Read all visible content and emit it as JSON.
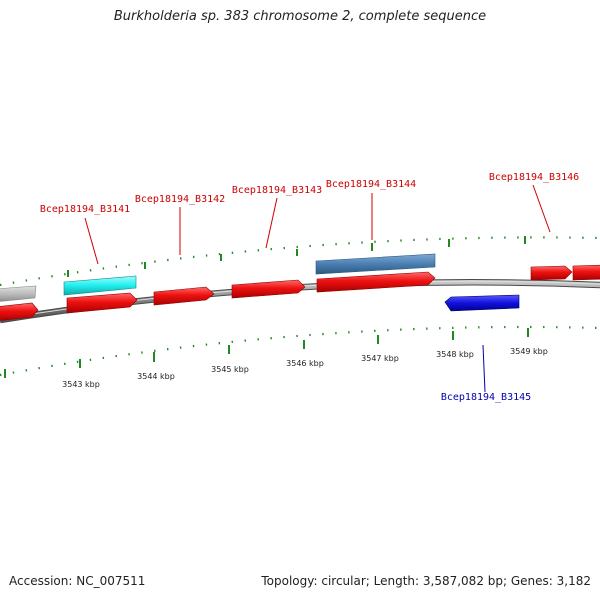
{
  "title": "Burkholderia sp. 383 chromosome 2, complete sequence",
  "footer": {
    "accession": "Accession: NC_007511",
    "summary": "Topology: circular; Length: 3,587,082 bp; Genes: 3,182"
  },
  "colors": {
    "gene_forward": "#ee1111",
    "gene_reverse": "#1111dd",
    "gene_cyan": "#22eeee",
    "gene_steelblue": "#4a7fb2",
    "gene_gray": "#bbbbbb",
    "backbone": "#888888",
    "ticks": "#228822",
    "label_red": "#cc0000",
    "label_blue": "#0000aa"
  },
  "genes": [
    {
      "id": "Bcep18194_B3141",
      "strand": "+",
      "track": "outer",
      "color": "cyan",
      "labeled": true
    },
    {
      "id": "Bcep18194_B3142",
      "strand": "+",
      "track": "inner",
      "color": "red",
      "labeled": true
    },
    {
      "id": "Bcep18194_B3143",
      "strand": "+",
      "track": "inner",
      "color": "red",
      "labeled": true
    },
    {
      "id": "Bcep18194_B3144",
      "strand": "+",
      "track": "outer",
      "color": "steelblue",
      "labeled": true
    },
    {
      "id": "Bcep18194_B3145",
      "strand": "-",
      "track": "reverse",
      "color": "blue",
      "labeled": true
    },
    {
      "id": "Bcep18194_B3146",
      "strand": "+",
      "track": "inner",
      "color": "red",
      "labeled": true
    }
  ],
  "scale": {
    "unit": "kbp",
    "labels": [
      "3543 kbp",
      "3544 kbp",
      "3545 kbp",
      "3546 kbp",
      "3547 kbp",
      "3548 kbp",
      "3549 kbp"
    ]
  }
}
